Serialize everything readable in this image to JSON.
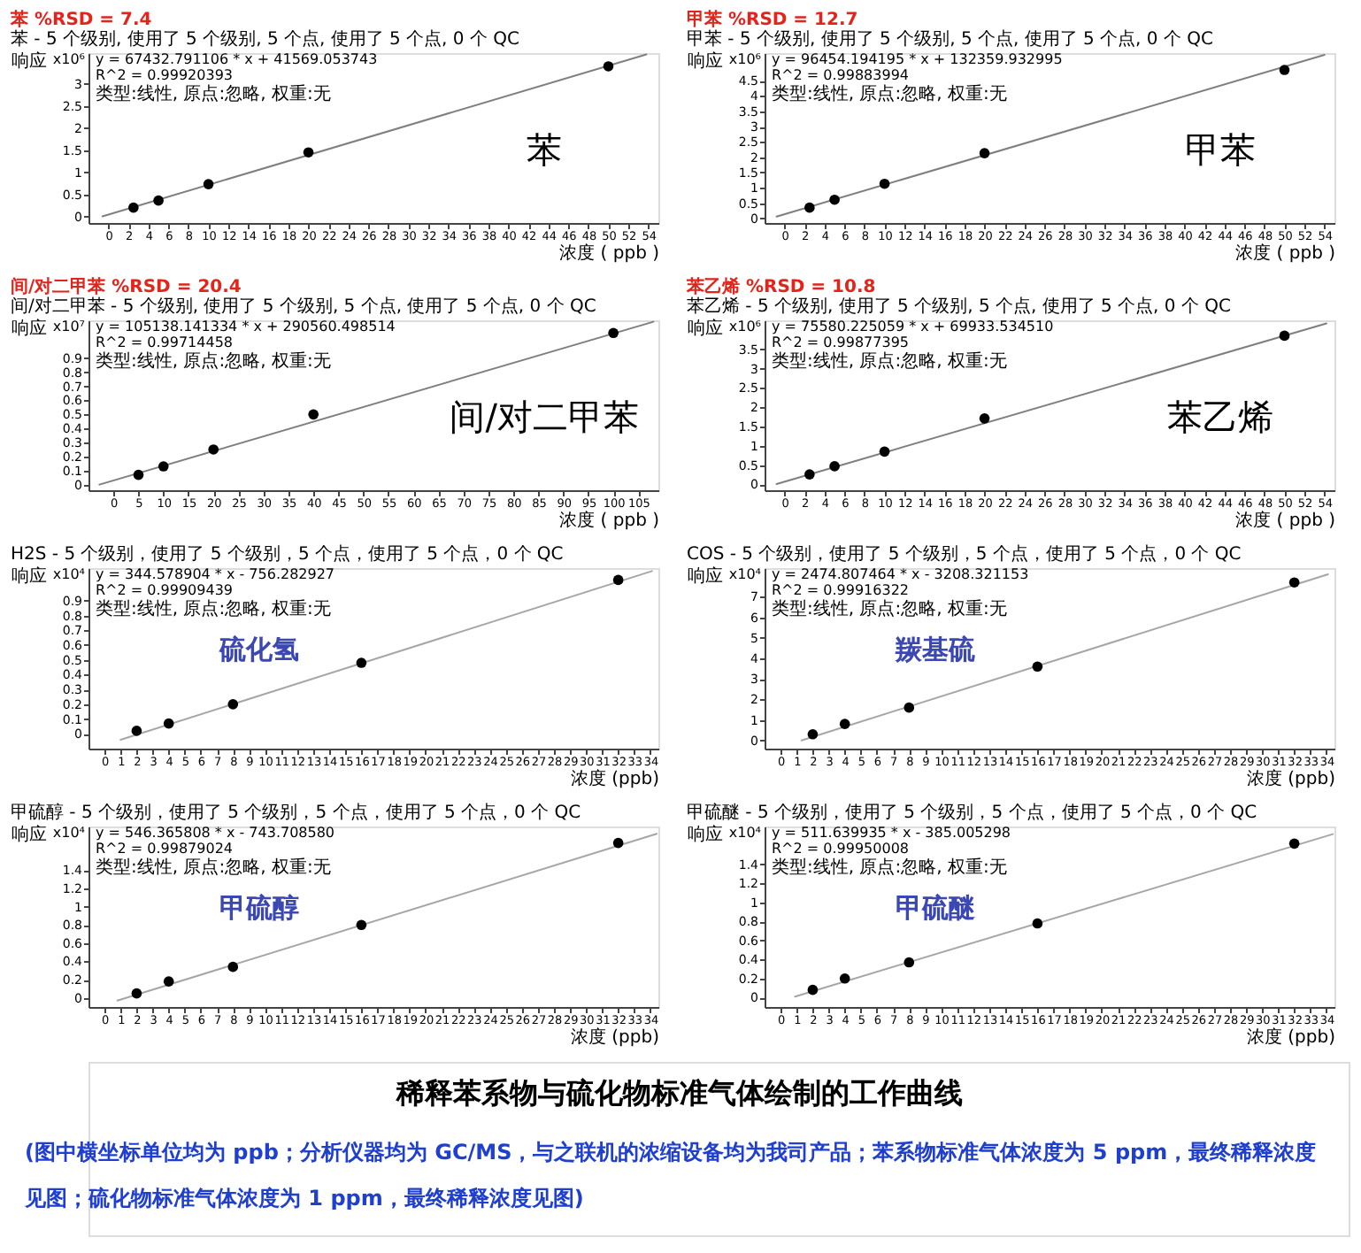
{
  "chart_data": [
    {
      "type": "scatter",
      "title": "苯  %RSD = 7.4",
      "subtitle": "苯 - 5 个级别, 使用了 5 个级别, 5 个点, 使用了 5 个点, 0 个 QC",
      "xlabel": "浓度 ( ppb )",
      "ylabel": "响应",
      "annotations": [
        "x10⁶",
        "y = 67432.791106 * x + 41569.053743",
        "R^2 = 0.99920393",
        "类型:线性, 原点:忽略, 权重:无",
        "苯"
      ],
      "x": [
        2.5,
        5,
        10,
        20,
        50
      ],
      "marker": "circle",
      "series": [
        {
          "type": "line",
          "color": "#7f7f7f",
          "marker": "none",
          "x": [
            -0.6,
            53.8
          ],
          "values": [
            0.0,
            3.67
          ]
        },
        {
          "type": "scatter",
          "color": "#000000",
          "values": [
            0.2,
            0.36,
            0.73,
            1.45,
            3.4
          ]
        }
      ],
      "xlim": [
        -2,
        55
      ],
      "ylim": [
        -0.15,
        3.7
      ],
      "xticks": [
        0,
        2,
        4,
        6,
        8,
        10,
        12,
        14,
        16,
        18,
        20,
        22,
        24,
        26,
        28,
        30,
        32,
        34,
        36,
        38,
        40,
        42,
        44,
        46,
        48,
        50,
        52,
        54
      ],
      "yticks": [
        0,
        0.5,
        1,
        1.5,
        2,
        2.5,
        3
      ]
    },
    {
      "type": "scatter",
      "title": "甲苯  %RSD = 12.7",
      "subtitle": "甲苯 - 5 个级别, 使用了 5 个级别, 5 个点, 使用了 5 个点, 0 个 QC",
      "xlabel": "浓度 ( ppb )",
      "ylabel": "响应",
      "annotations": [
        "x10⁶",
        "y = 96454.194195 * x + 132359.932995",
        "R^2 = 0.99883994",
        "类型:线性, 原点:忽略, 权重:无",
        "甲苯"
      ],
      "x": [
        2.5,
        5,
        10,
        20,
        50
      ],
      "marker": "circle",
      "series": [
        {
          "type": "line",
          "color": "#7f7f7f",
          "marker": "none",
          "x": [
            -0.8,
            54
          ],
          "values": [
            0.06,
            5.34
          ]
        },
        {
          "type": "scatter",
          "color": "#000000",
          "values": [
            0.35,
            0.61,
            1.13,
            2.13,
            4.85
          ]
        }
      ],
      "xlim": [
        -2,
        55
      ],
      "ylim": [
        -0.15,
        5.4
      ],
      "xticks": [
        0,
        2,
        4,
        6,
        8,
        10,
        12,
        14,
        16,
        18,
        20,
        22,
        24,
        26,
        28,
        30,
        32,
        34,
        36,
        38,
        40,
        42,
        44,
        46,
        48,
        50,
        52,
        54
      ],
      "yticks": [
        0,
        0.5,
        1,
        1.5,
        2,
        2.5,
        3,
        3.5,
        4,
        4.5
      ]
    },
    {
      "type": "scatter",
      "title": "间/对二甲苯  %RSD = 20.4",
      "subtitle": "间/对二甲苯 - 5 个级别, 使用了 5 个级别, 5 个点, 使用了 5 个点, 0 个 QC",
      "xlabel": "浓度 ( ppb )",
      "ylabel": "响应",
      "annotations": [
        "x10⁷",
        "y = 105138.141334 * x + 290560.498514",
        "R^2 = 0.99714458",
        "类型:线性, 原点:忽略, 权重:无",
        "间/对二甲苯"
      ],
      "x": [
        5,
        10,
        20,
        40,
        100
      ],
      "marker": "circle",
      "series": [
        {
          "type": "line",
          "color": "#7f7f7f",
          "marker": "none",
          "x": [
            -2.8,
            108
          ],
          "values": [
            0.0,
            1.16
          ]
        },
        {
          "type": "scatter",
          "color": "#000000",
          "values": [
            0.07,
            0.13,
            0.25,
            0.5,
            1.08
          ]
        }
      ],
      "xlim": [
        -5,
        109
      ],
      "ylim": [
        -0.04,
        1.17
      ],
      "xticks": [
        0,
        5,
        10,
        15,
        20,
        25,
        30,
        35,
        40,
        45,
        50,
        55,
        60,
        65,
        70,
        75,
        80,
        85,
        90,
        95,
        100,
        105
      ],
      "yticks": [
        0,
        0.1,
        0.2,
        0.3,
        0.4,
        0.5,
        0.6,
        0.7,
        0.8,
        0.9
      ]
    },
    {
      "type": "scatter",
      "title": "苯乙烯  %RSD = 10.8",
      "subtitle": "苯乙烯 - 5 个级别, 使用了 5 个级别, 5 个点, 使用了 5 个点, 0 个 QC",
      "xlabel": "浓度 ( ppb )",
      "ylabel": "响应",
      "annotations": [
        "x10⁶",
        "y = 75580.225059 * x + 69933.534510",
        "R^2 = 0.99877395",
        "类型:线性, 原点:忽略, 权重:无",
        "苯乙烯"
      ],
      "x": [
        2.5,
        5,
        10,
        20,
        50
      ],
      "marker": "circle",
      "series": [
        {
          "type": "line",
          "color": "#7f7f7f",
          "marker": "none",
          "x": [
            -0.8,
            54.2
          ],
          "values": [
            0.01,
            4.17
          ]
        },
        {
          "type": "scatter",
          "color": "#000000",
          "values": [
            0.26,
            0.47,
            0.85,
            1.71,
            3.85
          ]
        }
      ],
      "xlim": [
        -2,
        55
      ],
      "ylim": [
        -0.15,
        4.25
      ],
      "xticks": [
        0,
        2,
        4,
        6,
        8,
        10,
        12,
        14,
        16,
        18,
        20,
        22,
        24,
        26,
        28,
        30,
        32,
        34,
        36,
        38,
        40,
        42,
        44,
        46,
        48,
        50,
        52,
        54
      ],
      "yticks": [
        0,
        0.5,
        1,
        1.5,
        2,
        2.5,
        3,
        3.5
      ]
    },
    {
      "type": "scatter",
      "subtitle": "H2S - 5 个级别，使用了 5 个级别，5 个点，使用了 5 个点，0 个 QC",
      "xlabel": "浓度 (ppb)",
      "ylabel": "响应",
      "annotations": [
        "x10⁴",
        "y = 344.578904 * x - 756.282927",
        "R^2 = 0.99909439",
        "类型:线性, 原点:忽略, 权重:无",
        "硫化氢"
      ],
      "x": [
        2,
        4,
        8,
        16,
        32
      ],
      "marker": "circle",
      "series": [
        {
          "type": "line",
          "color": "#a6a6a6",
          "marker": "none",
          "x": [
            1,
            34.1
          ],
          "values": [
            -0.04,
            1.1
          ]
        },
        {
          "type": "scatter",
          "color": "#000000",
          "values": [
            0.02,
            0.07,
            0.2,
            0.48,
            1.04
          ]
        }
      ],
      "xlim": [
        -1,
        34.5
      ],
      "ylim": [
        -0.1,
        1.12
      ],
      "xticks": [
        0,
        1,
        2,
        3,
        4,
        5,
        6,
        7,
        8,
        9,
        10,
        11,
        12,
        13,
        14,
        15,
        16,
        17,
        18,
        19,
        20,
        21,
        22,
        23,
        24,
        25,
        26,
        27,
        28,
        29,
        30,
        31,
        32,
        33,
        34
      ],
      "yticks": [
        0,
        0.1,
        0.2,
        0.3,
        0.4,
        0.5,
        0.6,
        0.7,
        0.8,
        0.9
      ]
    },
    {
      "type": "scatter",
      "subtitle": "COS - 5 个级别，使用了 5 个级别，5 个点，使用了 5 个点，0 个 QC",
      "xlabel": "浓度 (ppb)",
      "ylabel": "响应",
      "annotations": [
        "x10⁴",
        "y = 2474.807464 * x - 3208.321153",
        "R^2 = 0.99916322",
        "类型:线性, 原点:忽略, 权重:无",
        "羰基硫"
      ],
      "x": [
        2,
        4,
        8,
        16,
        32
      ],
      "marker": "circle",
      "series": [
        {
          "type": "line",
          "color": "#a6a6a6",
          "marker": "none",
          "x": [
            1.3,
            34.1
          ],
          "values": [
            0.0,
            8.1
          ]
        },
        {
          "type": "scatter",
          "color": "#000000",
          "values": [
            0.3,
            0.8,
            1.6,
            3.6,
            7.7
          ]
        }
      ],
      "xlim": [
        -1,
        34.5
      ],
      "ylim": [
        -0.4,
        8.4
      ],
      "xticks": [
        0,
        1,
        2,
        3,
        4,
        5,
        6,
        7,
        8,
        9,
        10,
        11,
        12,
        13,
        14,
        15,
        16,
        17,
        18,
        19,
        20,
        21,
        22,
        23,
        24,
        25,
        26,
        27,
        28,
        29,
        30,
        31,
        32,
        33,
        34
      ],
      "yticks": [
        0,
        1,
        2,
        3,
        4,
        5,
        6,
        7
      ]
    },
    {
      "type": "scatter",
      "subtitle": "甲硫醇 - 5 个级别，使用了 5 个级别，5 个点，使用了 5 个点，0 个 QC",
      "xlabel": "浓度 (ppb)",
      "ylabel": "响应",
      "annotations": [
        "x10⁴",
        "y = 546.365808 * x - 743.708580",
        "R^2 = 0.99879024",
        "类型:线性, 原点:忽略, 权重:无",
        "甲硫醇"
      ],
      "x": [
        2,
        4,
        8,
        16,
        32
      ],
      "marker": "circle",
      "series": [
        {
          "type": "line",
          "color": "#a6a6a6",
          "marker": "none",
          "x": [
            0.8,
            34.4
          ],
          "values": [
            -0.03,
            1.8
          ]
        },
        {
          "type": "scatter",
          "color": "#000000",
          "values": [
            0.05,
            0.18,
            0.34,
            0.8,
            1.7
          ]
        }
      ],
      "xlim": [
        -1,
        34.5
      ],
      "ylim": [
        -0.1,
        1.88
      ],
      "xticks": [
        0,
        1,
        2,
        3,
        4,
        5,
        6,
        7,
        8,
        9,
        10,
        11,
        12,
        13,
        14,
        15,
        16,
        17,
        18,
        19,
        20,
        21,
        22,
        23,
        24,
        25,
        26,
        27,
        28,
        29,
        30,
        31,
        32,
        33,
        34
      ],
      "yticks": [
        0,
        0.2,
        0.4,
        0.6,
        0.8,
        1,
        1.2,
        1.4
      ]
    },
    {
      "type": "scatter",
      "subtitle": "甲硫醚 - 5 个级别，使用了 5 个级别，5 个点，使用了 5 个点，0 个 QC",
      "xlabel": "浓度 (ppb)",
      "ylabel": "响应",
      "annotations": [
        "x10⁴",
        "y = 511.639935 * x - 385.005298",
        "R^2 = 0.99950008",
        "类型:线性, 原点:忽略, 权重:无",
        "甲硫醚"
      ],
      "x": [
        2,
        4,
        8,
        16,
        32
      ],
      "marker": "circle",
      "series": [
        {
          "type": "line",
          "color": "#a6a6a6",
          "marker": "none",
          "x": [
            0.9,
            34.4
          ],
          "values": [
            0.01,
            1.72
          ]
        },
        {
          "type": "scatter",
          "color": "#000000",
          "values": [
            0.08,
            0.2,
            0.37,
            0.78,
            1.62
          ]
        }
      ],
      "xlim": [
        -1,
        34.5
      ],
      "ylim": [
        -0.1,
        1.8
      ],
      "xticks": [
        0,
        1,
        2,
        3,
        4,
        5,
        6,
        7,
        8,
        9,
        10,
        11,
        12,
        13,
        14,
        15,
        16,
        17,
        18,
        19,
        20,
        21,
        22,
        23,
        24,
        25,
        26,
        27,
        28,
        29,
        30,
        31,
        32,
        33,
        34
      ],
      "yticks": [
        0,
        0.2,
        0.4,
        0.6,
        0.8,
        1,
        1.2,
        1.4
      ]
    },
    {
      "type": "other",
      "title": "稀释苯系物与硫化物标准气体绘制的工作曲线",
      "annotations": [
        "(图中横坐标单位均为 ppb；分析仪器均为 GC/MS，与之联机的浓缩设备均为我司产品；苯系物标准气体浓度为 5 ppm，最终稀释浓度见图；硫化物标准气体浓度为 1 ppm，最终稀释浓度见图)"
      ]
    }
  ]
}
